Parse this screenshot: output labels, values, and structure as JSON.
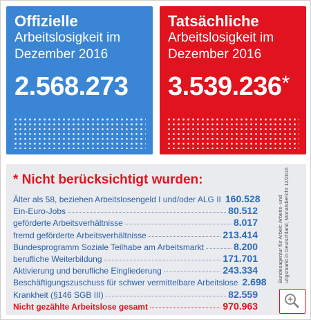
{
  "cards": [
    {
      "title": "Offizielle",
      "subtitle_lines": [
        "Arbeitslosigkeit im",
        "Dezember 2016"
      ],
      "number": "2.568.273"
    },
    {
      "title": "Tatsächliche",
      "subtitle_lines": [
        "Arbeitslosigkeit im",
        "Dezember 2016"
      ],
      "number": "3.539.236",
      "mark": "*"
    }
  ],
  "details": {
    "title": "* Nicht berücksichtigt wurden:",
    "rows": [
      {
        "label": "Älter als 58, beziehen Arbeitslosengeld I und/oder ALG II",
        "value": "160.528"
      },
      {
        "label": "Ein-Euro-Jobs",
        "value": "80.512"
      },
      {
        "label": "geförderte Arbeitsverhältnisse",
        "value": "8.017"
      },
      {
        "label": "fremd geförderte Arbeitsverhältnisse",
        "value": "213.414"
      },
      {
        "label": "Bundesprogramm Soziale Teilhabe am Arbeitsmarkt",
        "value": "8.200"
      },
      {
        "label": "berufliche Weiterbildung",
        "value": "171.701"
      },
      {
        "label": "Aktivierung und berufliche Eingliederung",
        "value": "243.334"
      },
      {
        "label": "Beschäftigungszuschuss für schwer vermittelbare Arbeitslose",
        "value": "2.698"
      },
      {
        "label": "Krankheit (§146 SGB III)",
        "value": "82.559"
      }
    ],
    "total": {
      "label": "Nicht gezählte Arbeitslose gesamt",
      "value": "970.963"
    }
  },
  "source_lines": [
    "Bundesagentur für Arbeit: Arbeits- und",
    "ungsmarkt in Deutschland, Monatsbericht 12/2016"
  ]
}
